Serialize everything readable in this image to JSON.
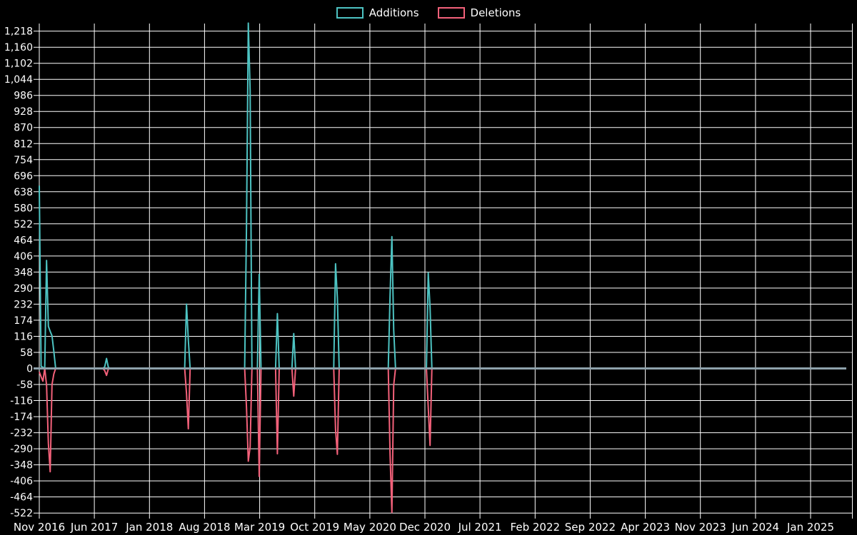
{
  "page": {
    "background": "#000000"
  },
  "legend": {
    "items": [
      {
        "label": "Additions",
        "color": "#4dc3c2"
      },
      {
        "label": "Deletions",
        "color": "#f3617a"
      }
    ]
  },
  "chart_data": {
    "type": "line",
    "title": "",
    "xlabel": "",
    "ylabel": "",
    "grid": true,
    "legend_position": "top-center",
    "background_color": "#000000",
    "grid_color": "#ffffff",
    "zero_line_color": "#8ea1ab",
    "text_color": "#ffffff",
    "ylim": [
      -522,
      1218
    ],
    "y_tick_step": 58,
    "y_axis": {
      "ticks": [
        1218,
        1160,
        1102,
        1044,
        986,
        928,
        870,
        812,
        754,
        696,
        638,
        580,
        522,
        464,
        406,
        348,
        290,
        232,
        174,
        116,
        58,
        0,
        -58,
        -116,
        -174,
        -232,
        -290,
        -348,
        -406,
        -464,
        -522
      ],
      "tick_labels": [
        "1,218",
        "1,160",
        "1,102",
        "1,044",
        "986",
        "928",
        "870",
        "812",
        "754",
        "696",
        "638",
        "580",
        "522",
        "464",
        "406",
        "348",
        "290",
        "232",
        "174",
        "116",
        "58",
        "0",
        "-58",
        "-116",
        "-174",
        "-232",
        "-290",
        "-348",
        "-406",
        "-464",
        "-522"
      ]
    },
    "x_axis": {
      "labels": [
        "Nov 2016",
        "Jun 2017",
        "Jan 2018",
        "Aug 2018",
        "Mar 2019",
        "Oct 2019",
        "May 2020",
        "Dec 2020",
        "Jul 2021",
        "Feb 2022",
        "Sep 2022",
        "Apr 2023",
        "Nov 2023",
        "Jun 2024",
        "Jan 2025"
      ]
    },
    "series": [
      {
        "name": "Additions",
        "color": "#4dc3c2",
        "sign": "positive"
      },
      {
        "name": "Deletions",
        "color": "#f3617a",
        "sign": "negative"
      }
    ],
    "weeks_start": "2016-11-06",
    "weeks_end": "2025-05-11",
    "points": [
      {
        "week": "2016-11-06",
        "additions": 660,
        "deletions": -12
      },
      {
        "week": "2016-11-13",
        "additions": 8,
        "deletions": -30
      },
      {
        "week": "2016-11-20",
        "additions": 4,
        "deletions": -46
      },
      {
        "week": "2016-12-04",
        "additions": 390,
        "deletions": -60
      },
      {
        "week": "2016-12-11",
        "additions": 152,
        "deletions": -270
      },
      {
        "week": "2016-12-18",
        "additions": 134,
        "deletions": -373
      },
      {
        "week": "2016-12-25",
        "additions": 118,
        "deletions": -58
      },
      {
        "week": "2017-01-01",
        "additions": 62,
        "deletions": -20
      },
      {
        "week": "2017-07-16",
        "additions": 6,
        "deletions": -8
      },
      {
        "week": "2017-07-23",
        "additions": 36,
        "deletions": -25
      },
      {
        "week": "2017-07-30",
        "additions": 4,
        "deletions": -2
      },
      {
        "week": "2018-05-27",
        "additions": 232,
        "deletions": -90
      },
      {
        "week": "2018-06-03",
        "additions": 103,
        "deletions": -218
      },
      {
        "week": "2019-01-13",
        "additions": 510,
        "deletions": -140
      },
      {
        "week": "2019-01-20",
        "additions": 1247,
        "deletions": -335
      },
      {
        "week": "2019-01-27",
        "additions": 1004,
        "deletions": -283
      },
      {
        "week": "2019-03-03",
        "additions": 340,
        "deletions": -390
      },
      {
        "week": "2019-05-12",
        "additions": 198,
        "deletions": -308
      },
      {
        "week": "2019-07-14",
        "additions": 126,
        "deletions": -100
      },
      {
        "week": "2019-12-22",
        "additions": 378,
        "deletions": -220
      },
      {
        "week": "2019-12-29",
        "additions": 255,
        "deletions": -310
      },
      {
        "week": "2020-07-19",
        "additions": 263,
        "deletions": -310
      },
      {
        "week": "2020-07-26",
        "additions": 476,
        "deletions": -520
      },
      {
        "week": "2020-08-02",
        "additions": 139,
        "deletions": -60
      },
      {
        "week": "2020-12-13",
        "additions": 345,
        "deletions": -140
      },
      {
        "week": "2020-12-20",
        "additions": 219,
        "deletions": -278
      }
    ]
  }
}
